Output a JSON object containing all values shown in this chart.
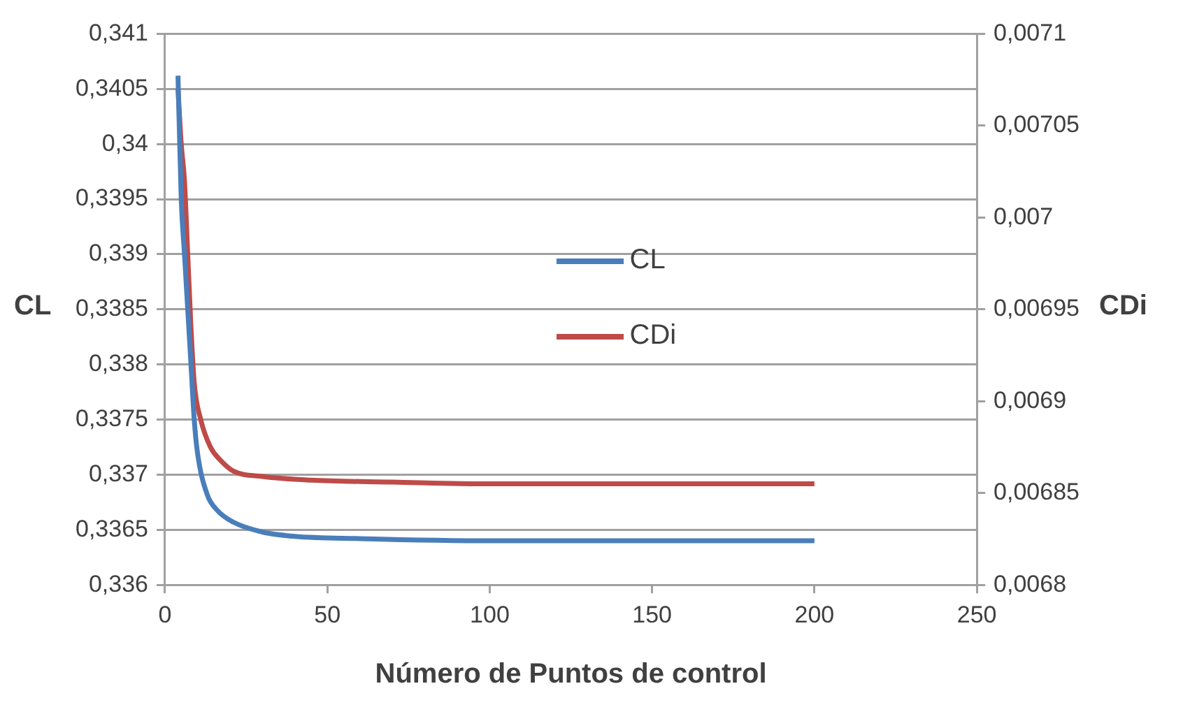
{
  "chart_data": {
    "type": "line",
    "xlabel": "Número de Puntos de control",
    "ylabel": "CL",
    "y2label": "CDi",
    "series": [
      {
        "name": "CL",
        "color": "#4a7ebb",
        "x": [
          4,
          5,
          6,
          7,
          8,
          9,
          10,
          13,
          16,
          21,
          30,
          40,
          60,
          100,
          150,
          200
        ],
        "values": [
          0.34062,
          0.3395,
          0.339,
          0.3385,
          0.338,
          0.3375,
          0.3372,
          0.33682,
          0.33668,
          0.33657,
          0.33648,
          0.33644,
          0.33642,
          0.3364,
          0.3364,
          0.3364
        ]
      },
      {
        "name": "CDi",
        "color": "#be4b48",
        "axis": "y2",
        "x": [
          4,
          5,
          6,
          7,
          8,
          9,
          11,
          14,
          17,
          21,
          30,
          45,
          70,
          100,
          150,
          200
        ],
        "values": [
          0.00707,
          0.00704,
          0.00702,
          0.00698,
          0.00694,
          0.00691,
          0.00689,
          0.006875,
          0.006868,
          0.006862,
          0.006859,
          0.006857,
          0.006856,
          0.006855,
          0.006855,
          0.006855
        ]
      }
    ],
    "xlim": [
      0,
      250
    ],
    "xticks": [
      0,
      50,
      100,
      150,
      200,
      250
    ],
    "ylim": [
      0.336,
      0.341
    ],
    "yticks": [
      {
        "value": 0.336,
        "label": "0,336"
      },
      {
        "value": 0.3365,
        "label": "0,3365"
      },
      {
        "value": 0.337,
        "label": "0,337"
      },
      {
        "value": 0.3375,
        "label": "0,3375"
      },
      {
        "value": 0.338,
        "label": "0,338"
      },
      {
        "value": 0.3385,
        "label": "0,3385"
      },
      {
        "value": 0.339,
        "label": "0,339"
      },
      {
        "value": 0.3395,
        "label": "0,3395"
      },
      {
        "value": 0.34,
        "label": "0,34"
      },
      {
        "value": 0.3405,
        "label": "0,3405"
      },
      {
        "value": 0.341,
        "label": "0,341"
      }
    ],
    "y2lim": [
      0.0068,
      0.0071
    ],
    "y2ticks": [
      {
        "value": 0.0068,
        "label": "0,0068"
      },
      {
        "value": 0.00685,
        "label": "0,00685"
      },
      {
        "value": 0.0069,
        "label": "0,0069"
      },
      {
        "value": 0.00695,
        "label": "0,00695"
      },
      {
        "value": 0.007,
        "label": "0,007"
      },
      {
        "value": 0.00705,
        "label": "0,00705"
      },
      {
        "value": 0.0071,
        "label": "0,0071"
      }
    ],
    "grid": "y",
    "legend": "center",
    "marker": "none",
    "line_style": "solid"
  }
}
